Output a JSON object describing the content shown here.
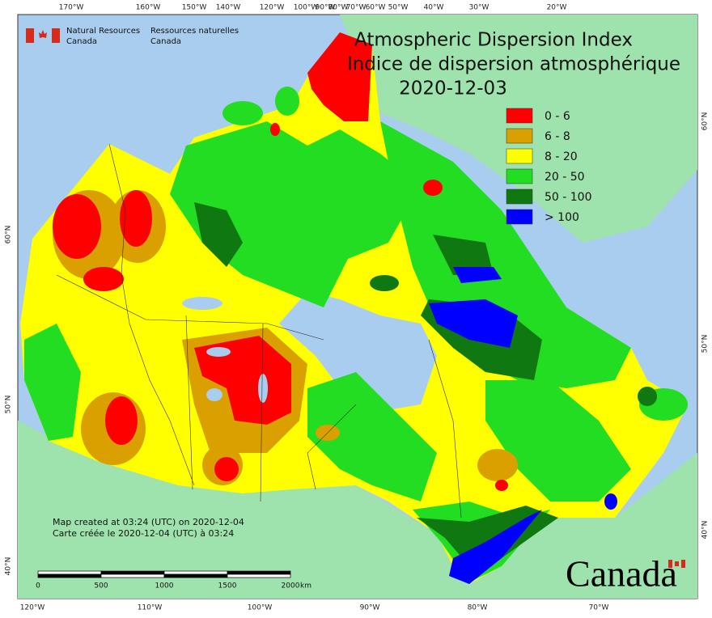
{
  "header": {
    "agency_en": [
      "Natural Resources",
      "Canada"
    ],
    "agency_fr": [
      "Ressources naturelles",
      "Canada"
    ]
  },
  "title": {
    "en": "Atmospheric Dispersion Index",
    "fr": "Indice de dispersion atmosphérique",
    "date": "2020-12-03"
  },
  "legend": [
    {
      "label": "0 - 6",
      "color": "#ff0000"
    },
    {
      "label": "6 - 8",
      "color": "#d9a000"
    },
    {
      "label": "8 - 20",
      "color": "#ffff00"
    },
    {
      "label": "20 - 50",
      "color": "#22dd22"
    },
    {
      "label": "50 - 100",
      "color": "#107810"
    },
    {
      "label": "> 100",
      "color": "#0000ff"
    }
  ],
  "graticule": {
    "top": [
      "170°W",
      "160°W",
      "150°W",
      "140°W",
      "120°W",
      "100°W",
      "90°W",
      "80°W",
      "70°W",
      "60°W",
      "50°W",
      "40°W",
      "30°W",
      "20°W"
    ],
    "bottom": [
      "120°W",
      "110°W",
      "100°W",
      "90°W",
      "80°W",
      "70°W"
    ],
    "left": [
      "60°N",
      "50°N",
      "40°N"
    ],
    "right": [
      "60°N",
      "50°N",
      "40°N"
    ]
  },
  "scale_bar": {
    "labels": [
      "0",
      "500",
      "1000",
      "1500",
      "2000"
    ],
    "unit": "km"
  },
  "notes": [
    "Map created at 03:24 (UTC) on 2020-12-04",
    "Carte créée le 2020-12-04 (UTC) à 03:24"
  ],
  "wordmark": "Canada"
}
